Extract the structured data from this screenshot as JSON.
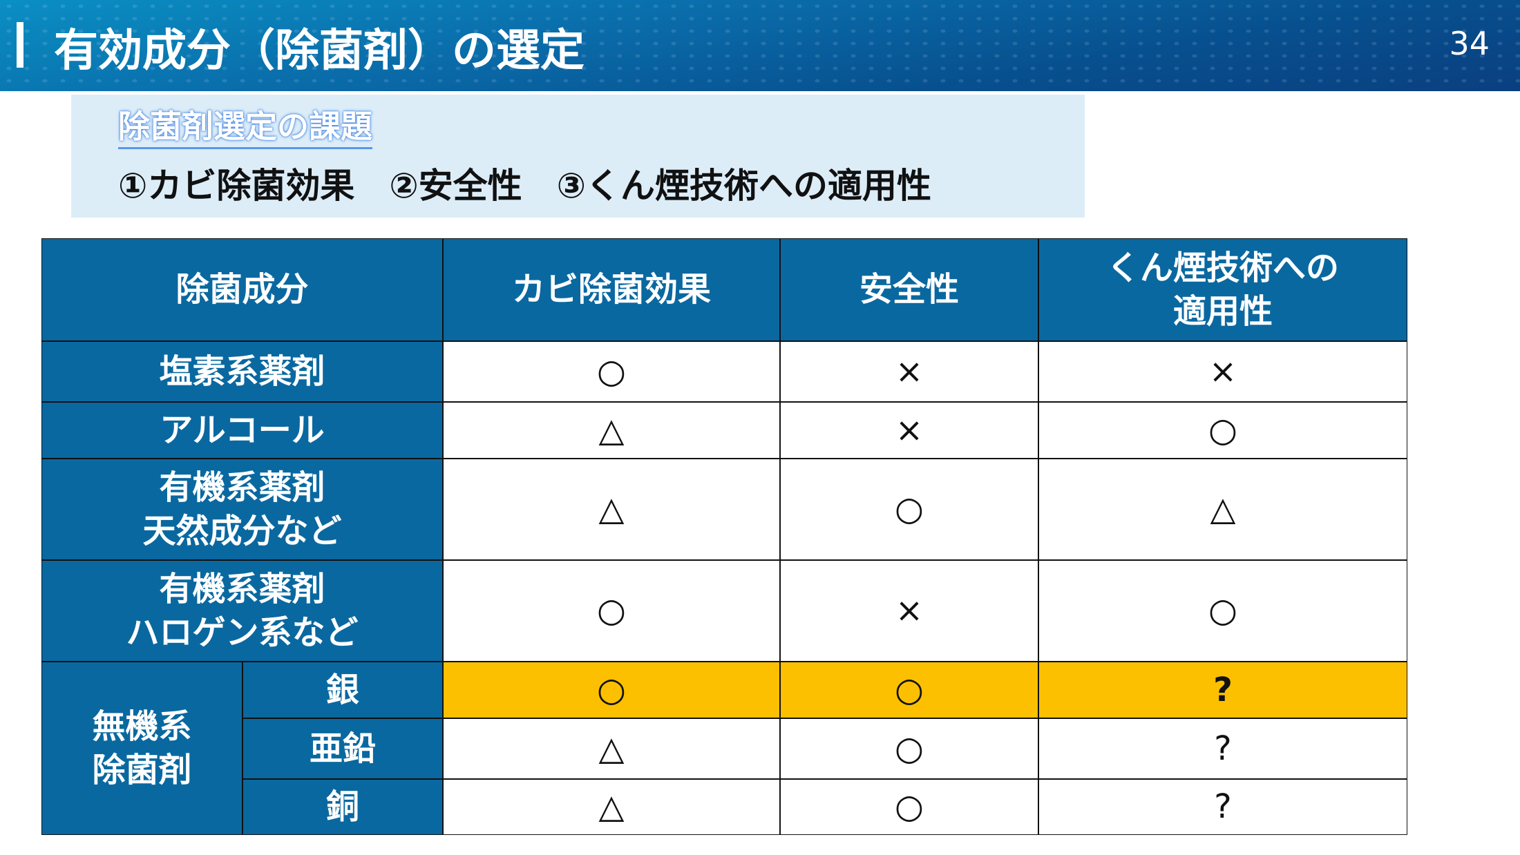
{
  "header": {
    "title": "有効成分（除菌剤）の選定",
    "page_number": "34"
  },
  "issues": {
    "heading": "除菌剤選定の課題",
    "items": "①カビ除菌効果　②安全性　③くん煙技術への適用性"
  },
  "table": {
    "columns": [
      "除菌成分",
      "カビ除菌効果",
      "安全性",
      "くん煙技術への\n適用性"
    ],
    "rows": [
      {
        "name": "塩素系薬剤",
        "values": [
          "○",
          "×",
          "×"
        ]
      },
      {
        "name": "アルコール",
        "values": [
          "△",
          "×",
          "○"
        ]
      },
      {
        "name": "有機系薬剤\n天然成分など",
        "values": [
          "△",
          "○",
          "△"
        ]
      },
      {
        "name": "有機系薬剤\nハロゲン系など",
        "values": [
          "○",
          "×",
          "○"
        ]
      }
    ],
    "group": {
      "name": "無機系\n除菌剤",
      "rows": [
        {
          "name": "銀",
          "values": [
            "○",
            "○",
            "?"
          ],
          "highlight": true
        },
        {
          "name": "亜鉛",
          "values": [
            "△",
            "○",
            "?"
          ]
        },
        {
          "name": "銅",
          "values": [
            "△",
            "○",
            "?"
          ]
        }
      ]
    },
    "highlight_color": "#fdc000",
    "header_color": "#0a68a0"
  }
}
